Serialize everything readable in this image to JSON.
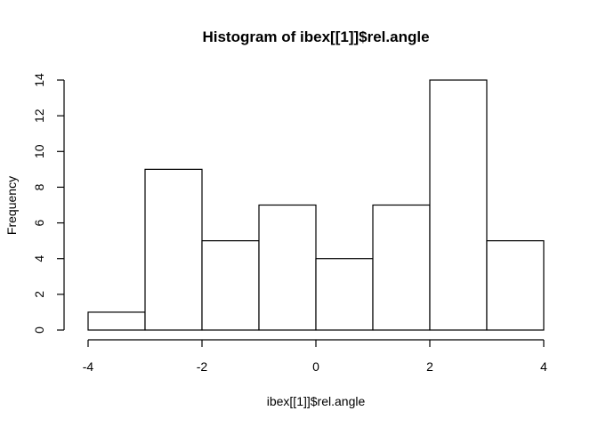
{
  "chart_data": {
    "type": "bar",
    "title": "Histogram of ibex[[1]]$rel.angle",
    "xlabel": "ibex[[1]]$rel.angle",
    "ylabel": "Frequency",
    "bins": [
      {
        "start": -4,
        "end": -3,
        "count": 1
      },
      {
        "start": -3,
        "end": -2,
        "count": 9
      },
      {
        "start": -2,
        "end": -1,
        "count": 5
      },
      {
        "start": -1,
        "end": 0,
        "count": 7
      },
      {
        "start": 0,
        "end": 1,
        "count": 4
      },
      {
        "start": 1,
        "end": 2,
        "count": 7
      },
      {
        "start": 2,
        "end": 3,
        "count": 14
      },
      {
        "start": 3,
        "end": 4,
        "count": 5
      }
    ],
    "xlim": [
      -4,
      4
    ],
    "ylim": [
      0,
      14
    ],
    "x_ticks": [
      -4,
      -2,
      0,
      2,
      4
    ],
    "x_tick_labels": [
      "-4",
      "-2",
      "0",
      "2",
      "4"
    ],
    "y_ticks": [
      0,
      2,
      4,
      6,
      8,
      10,
      12,
      14
    ],
    "y_tick_labels": [
      "0",
      "2",
      "4",
      "6",
      "8",
      "10",
      "12",
      "14"
    ],
    "grid": false,
    "bar_fill": "#ffffff",
    "bar_stroke": "#000000"
  }
}
